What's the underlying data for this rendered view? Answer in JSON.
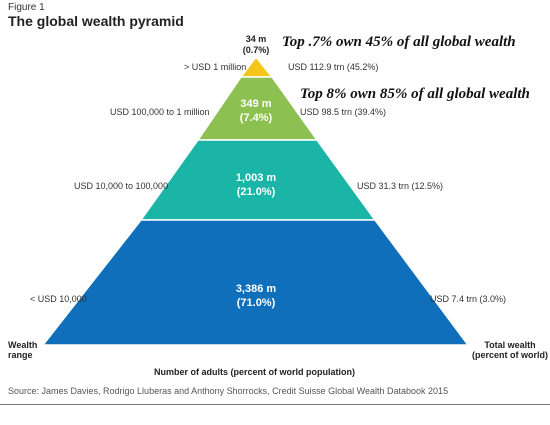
{
  "figure_label": "Figure 1",
  "title": "The global wealth pyramid",
  "colors": {
    "tier1": "#F5C518",
    "tier2": "#8CC152",
    "tier3": "#1BB5A8",
    "tier4": "#0F6FBA"
  },
  "tiers": [
    {
      "adults": "34 m",
      "share": "(0.7%)",
      "wealth_range": "> USD 1 million",
      "total_wealth": "USD 112.9 trn (45.2%)"
    },
    {
      "adults": "349 m",
      "share": "(7.4%)",
      "wealth_range": "USD 100,000 to 1 million",
      "total_wealth": "USD 98.5 trn (39.4%)"
    },
    {
      "adults": "1,003 m",
      "share": "(21.0%)",
      "wealth_range": "USD 10,000 to 100,000",
      "total_wealth": "USD 31.3 trn (12.5%)"
    },
    {
      "adults": "3,386 m",
      "share": "(71.0%)",
      "wealth_range": "< USD 10,000",
      "total_wealth": "USD 7.4 trn (3.0%)"
    }
  ],
  "annotations": {
    "top_note": "Top .7% own 45% of all global wealth",
    "second_note": "Top 8% own 85% of all global wealth"
  },
  "axes": {
    "left_label_line1": "Wealth",
    "left_label_line2": "range",
    "right_label_line1": "Total wealth",
    "right_label_line2": "(percent of world)",
    "bottom_label": "Number of adults (percent of world population)"
  },
  "source": "Source: James Davies, Rodrigo Lluberas and Anthony Shorrocks, Credit Suisse Global Wealth Databook 2015"
}
